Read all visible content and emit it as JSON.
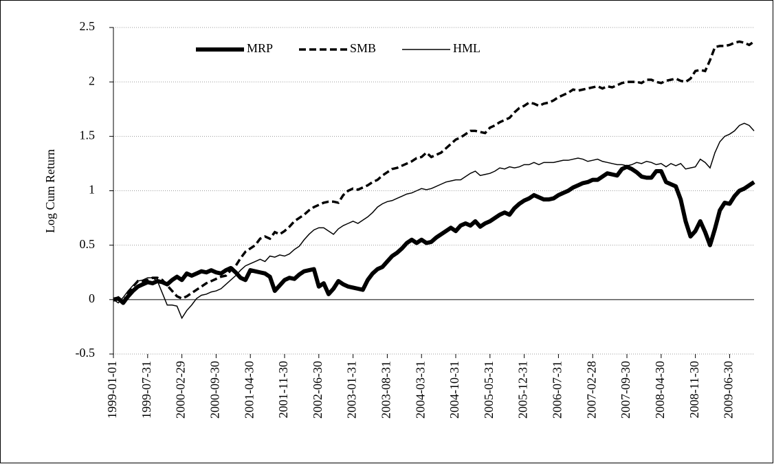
{
  "chart_data": {
    "type": "line",
    "y_label": "Log Cum Return",
    "categories": [
      "1999-01-01",
      null,
      null,
      null,
      null,
      null,
      null,
      "1999-07-31",
      null,
      null,
      null,
      null,
      null,
      null,
      "2000-02-29",
      null,
      null,
      null,
      null,
      null,
      null,
      "2000-09-30",
      null,
      null,
      null,
      null,
      null,
      null,
      "2001-04-30",
      null,
      null,
      null,
      null,
      null,
      null,
      "2001-11-30",
      null,
      null,
      null,
      null,
      null,
      null,
      "2002-06-30",
      null,
      null,
      null,
      null,
      null,
      null,
      "2003-01-31",
      null,
      null,
      null,
      null,
      null,
      null,
      "2003-08-31",
      null,
      null,
      null,
      null,
      null,
      null,
      "2004-03-31",
      null,
      null,
      null,
      null,
      null,
      null,
      "2004-10-31",
      null,
      null,
      null,
      null,
      null,
      null,
      "2005-05-31",
      null,
      null,
      null,
      null,
      null,
      null,
      "2005-12-31",
      null,
      null,
      null,
      null,
      null,
      null,
      "2006-07-31",
      null,
      null,
      null,
      null,
      null,
      null,
      "2007-02-28",
      null,
      null,
      null,
      null,
      null,
      null,
      "2007-09-30",
      null,
      null,
      null,
      null,
      null,
      null,
      "2008-04-30",
      null,
      null,
      null,
      null,
      null,
      null,
      "2008-11-30",
      null,
      null,
      null,
      null,
      null,
      null,
      "2009-06-30",
      null,
      null,
      null,
      null,
      null
    ],
    "series": [
      {
        "name": "MRP",
        "color": "#000000",
        "style": "thick",
        "values": [
          0,
          0.01,
          -0.03,
          0.03,
          0.08,
          0.12,
          0.14,
          0.16,
          0.15,
          0.17,
          0.16,
          0.14,
          0.18,
          0.21,
          0.18,
          0.24,
          0.22,
          0.24,
          0.26,
          0.25,
          0.27,
          0.25,
          0.24,
          0.27,
          0.29,
          0.25,
          0.2,
          0.18,
          0.27,
          0.26,
          0.25,
          0.24,
          0.21,
          0.08,
          0.13,
          0.18,
          0.2,
          0.19,
          0.23,
          0.26,
          0.27,
          0.28,
          0.12,
          0.15,
          0.05,
          0.1,
          0.17,
          0.14,
          0.12,
          0.11,
          0.1,
          0.09,
          0.18,
          0.24,
          0.28,
          0.3,
          0.35,
          0.4,
          0.43,
          0.47,
          0.52,
          0.55,
          0.52,
          0.55,
          0.52,
          0.53,
          0.57,
          0.6,
          0.63,
          0.66,
          0.63,
          0.68,
          0.7,
          0.68,
          0.72,
          0.67,
          0.7,
          0.72,
          0.75,
          0.78,
          0.8,
          0.78,
          0.84,
          0.88,
          0.91,
          0.93,
          0.96,
          0.94,
          0.92,
          0.92,
          0.93,
          0.96,
          0.98,
          1.0,
          1.03,
          1.05,
          1.07,
          1.08,
          1.1,
          1.1,
          1.13,
          1.16,
          1.15,
          1.14,
          1.2,
          1.22,
          1.2,
          1.17,
          1.13,
          1.12,
          1.12,
          1.18,
          1.18,
          1.08,
          1.06,
          1.04,
          0.92,
          0.72,
          0.58,
          0.63,
          0.72,
          0.62,
          0.5,
          0.65,
          0.82,
          0.89,
          0.88,
          0.95,
          1.0,
          1.02,
          1.05,
          1.08
        ]
      },
      {
        "name": "SMB",
        "color": "#000000",
        "style": "dashed",
        "values": [
          0,
          0.02,
          -0.02,
          0.06,
          0.12,
          0.17,
          0.17,
          0.18,
          0.2,
          0.2,
          0.18,
          0.13,
          0.08,
          0.03,
          0.01,
          0.03,
          0.06,
          0.09,
          0.12,
          0.15,
          0.17,
          0.19,
          0.21,
          0.22,
          0.27,
          0.31,
          0.38,
          0.44,
          0.47,
          0.5,
          0.56,
          0.58,
          0.56,
          0.62,
          0.6,
          0.63,
          0.67,
          0.72,
          0.75,
          0.78,
          0.82,
          0.85,
          0.87,
          0.89,
          0.9,
          0.9,
          0.89,
          0.96,
          1.0,
          1.02,
          1.01,
          1.03,
          1.05,
          1.08,
          1.1,
          1.14,
          1.17,
          1.2,
          1.21,
          1.23,
          1.25,
          1.27,
          1.3,
          1.31,
          1.35,
          1.31,
          1.33,
          1.35,
          1.39,
          1.43,
          1.47,
          1.49,
          1.52,
          1.55,
          1.55,
          1.54,
          1.53,
          1.58,
          1.6,
          1.63,
          1.65,
          1.67,
          1.72,
          1.76,
          1.78,
          1.81,
          1.8,
          1.78,
          1.8,
          1.81,
          1.83,
          1.86,
          1.88,
          1.9,
          1.93,
          1.92,
          1.93,
          1.94,
          1.95,
          1.96,
          1.94,
          1.96,
          1.95,
          1.97,
          1.99,
          2.0,
          2.0,
          2.0,
          1.99,
          2.02,
          2.02,
          2.0,
          1.99,
          2.01,
          2.02,
          2.03,
          2.01,
          2.0,
          2.03,
          2.1,
          2.11,
          2.1,
          2.2,
          2.32,
          2.33,
          2.33,
          2.34,
          2.36,
          2.37,
          2.36,
          2.34,
          2.37
        ]
      },
      {
        "name": "HML",
        "color": "#000000",
        "style": "thin",
        "values": [
          0,
          -0.03,
          0.02,
          0.08,
          0.13,
          0.17,
          0.18,
          0.2,
          0.2,
          0.17,
          0.06,
          -0.05,
          -0.05,
          -0.06,
          -0.17,
          -0.1,
          -0.05,
          0.01,
          0.04,
          0.05,
          0.07,
          0.08,
          0.1,
          0.14,
          0.18,
          0.22,
          0.27,
          0.31,
          0.33,
          0.35,
          0.37,
          0.35,
          0.4,
          0.39,
          0.41,
          0.4,
          0.42,
          0.46,
          0.49,
          0.55,
          0.6,
          0.64,
          0.66,
          0.66,
          0.63,
          0.6,
          0.65,
          0.68,
          0.7,
          0.72,
          0.7,
          0.73,
          0.76,
          0.8,
          0.85,
          0.88,
          0.9,
          0.91,
          0.93,
          0.95,
          0.97,
          0.98,
          1.0,
          1.02,
          1.01,
          1.02,
          1.04,
          1.06,
          1.08,
          1.09,
          1.1,
          1.1,
          1.13,
          1.16,
          1.18,
          1.14,
          1.15,
          1.16,
          1.18,
          1.21,
          1.2,
          1.22,
          1.21,
          1.22,
          1.24,
          1.24,
          1.26,
          1.24,
          1.26,
          1.26,
          1.26,
          1.27,
          1.28,
          1.28,
          1.29,
          1.3,
          1.29,
          1.27,
          1.28,
          1.29,
          1.27,
          1.26,
          1.25,
          1.24,
          1.24,
          1.23,
          1.24,
          1.26,
          1.25,
          1.27,
          1.26,
          1.24,
          1.25,
          1.22,
          1.25,
          1.23,
          1.25,
          1.2,
          1.21,
          1.22,
          1.29,
          1.26,
          1.21,
          1.35,
          1.45,
          1.5,
          1.52,
          1.55,
          1.6,
          1.62,
          1.6,
          1.55
        ]
      }
    ],
    "ylim": [
      -0.5,
      2.5
    ],
    "yticks": [
      -0.5,
      0,
      0.5,
      1,
      1.5,
      2,
      2.5
    ],
    "grid": true,
    "legend": "top"
  }
}
